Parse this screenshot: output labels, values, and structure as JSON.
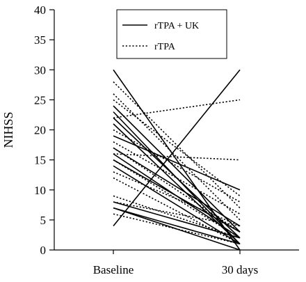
{
  "chart_data": {
    "type": "line",
    "categories": [
      "Baseline",
      "30 days"
    ],
    "ylabel": "NIHSS",
    "ylim": [
      0,
      40
    ],
    "yticks": [
      0,
      5,
      10,
      15,
      20,
      25,
      30,
      35,
      40
    ],
    "legend_position": "top-center",
    "series": [
      {
        "name": "rTPA + UK",
        "style": "solid",
        "lines": [
          [
            30,
            0
          ],
          [
            4,
            30
          ],
          [
            24,
            3
          ],
          [
            23,
            1
          ],
          [
            22,
            2
          ],
          [
            21,
            1
          ],
          [
            19,
            10
          ],
          [
            17,
            4
          ],
          [
            16,
            2
          ],
          [
            15,
            3
          ],
          [
            14,
            1
          ],
          [
            8,
            2
          ],
          [
            7,
            1
          ],
          [
            7,
            0
          ]
        ]
      },
      {
        "name": "rTPA",
        "style": "dotted",
        "lines": [
          [
            22,
            25
          ],
          [
            16,
            15
          ],
          [
            28,
            7
          ],
          [
            26,
            5
          ],
          [
            25,
            9
          ],
          [
            20,
            8
          ],
          [
            18,
            6
          ],
          [
            17,
            3
          ],
          [
            15,
            2
          ],
          [
            13,
            4
          ],
          [
            12,
            1
          ],
          [
            9,
            2
          ],
          [
            8,
            4
          ],
          [
            6,
            1
          ]
        ]
      }
    ]
  }
}
